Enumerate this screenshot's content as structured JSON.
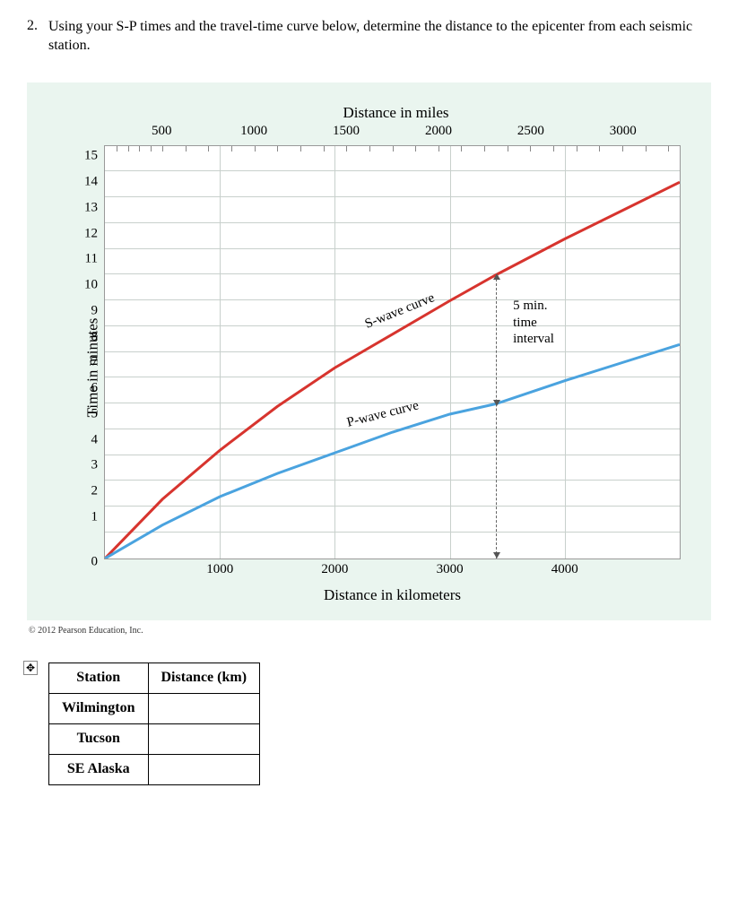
{
  "question": {
    "number": "2.",
    "text": "Using your S-P times and the travel-time curve below, determine the distance to the epicenter from each seismic station."
  },
  "chart": {
    "type": "line",
    "top_axis_title": "Distance in miles",
    "bottom_axis_title": "Distance in kilometers",
    "y_axis_title": "Time in minutes",
    "background_color": "#eaf5ef",
    "plot_bg": "#ffffff",
    "grid_color": "#c8d0cc",
    "top_ticks": [
      "500",
      "1000",
      "1500",
      "2000",
      "2500",
      "3000"
    ],
    "bottom_ticks": [
      "1000",
      "2000",
      "3000",
      "4000"
    ],
    "y_ticks": [
      "0",
      "1",
      "2",
      "3",
      "4",
      "5",
      "6",
      "7",
      "8",
      "9",
      "10",
      "11",
      "12",
      "13",
      "14",
      "15"
    ],
    "xlim_km": [
      0,
      5000
    ],
    "ylim": [
      0,
      16
    ],
    "series": {
      "s_wave": {
        "label": "S-wave curve",
        "color": "#d7342e",
        "line_width": 3,
        "points_km_min": [
          [
            0,
            0
          ],
          [
            500,
            2.3
          ],
          [
            1000,
            4.2
          ],
          [
            1500,
            5.9
          ],
          [
            2000,
            7.4
          ],
          [
            2500,
            8.7
          ],
          [
            3000,
            10.0
          ],
          [
            3400,
            11.0
          ],
          [
            4000,
            12.4
          ],
          [
            4500,
            13.5
          ],
          [
            5000,
            14.6
          ]
        ]
      },
      "p_wave": {
        "label": "P-wave curve",
        "color": "#4aa3df",
        "line_width": 3,
        "points_km_min": [
          [
            0,
            0
          ],
          [
            500,
            1.3
          ],
          [
            1000,
            2.4
          ],
          [
            1500,
            3.3
          ],
          [
            2000,
            4.1
          ],
          [
            2500,
            4.9
          ],
          [
            3000,
            5.6
          ],
          [
            3400,
            6.0
          ],
          [
            4000,
            6.9
          ],
          [
            4500,
            7.6
          ],
          [
            5000,
            8.3
          ]
        ]
      }
    },
    "annotation": {
      "lines": [
        "5 min.",
        "time",
        "interval"
      ],
      "at_km": 3400
    }
  },
  "copyright": "© 2012 Pearson Education, Inc.",
  "table": {
    "columns": [
      "Station",
      "Distance (km)"
    ],
    "rows": [
      [
        "Wilmington",
        ""
      ],
      [
        "Tucson",
        ""
      ],
      [
        "SE Alaska",
        ""
      ]
    ]
  }
}
